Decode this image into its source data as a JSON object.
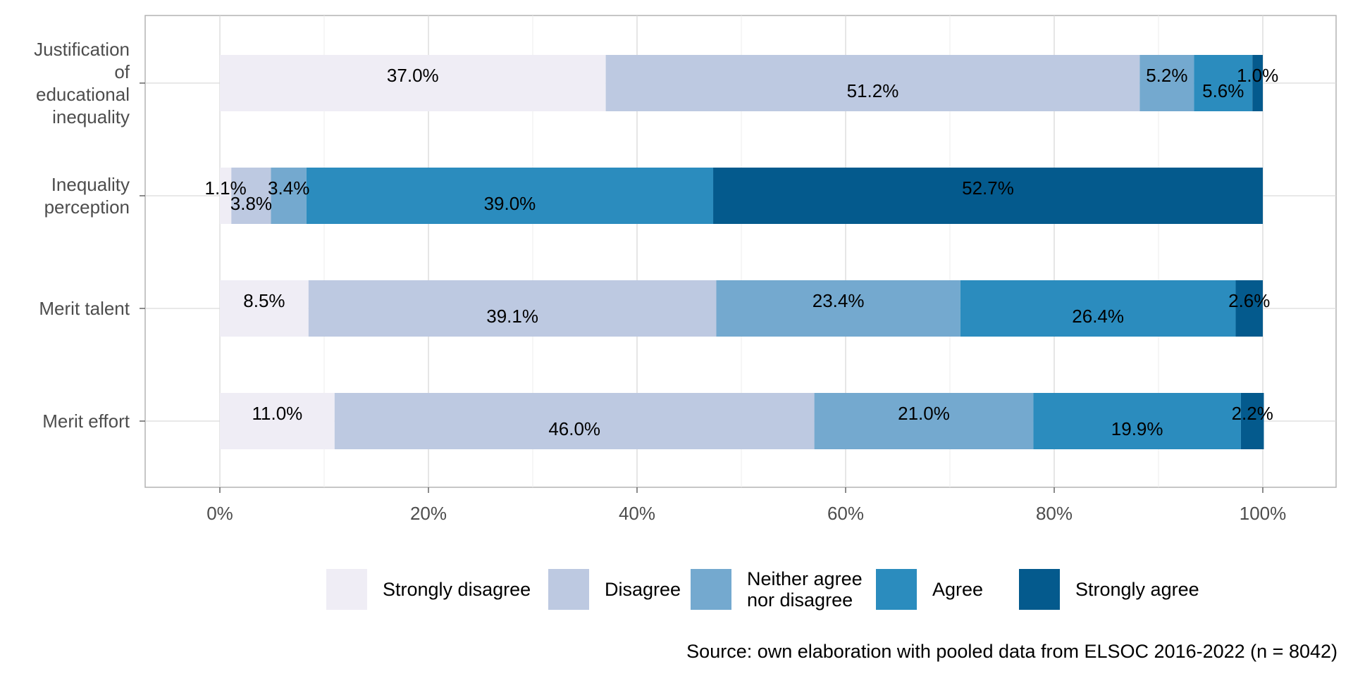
{
  "chart_data": {
    "type": "bar",
    "orientation": "horizontal",
    "stacked": true,
    "categories": [
      "Justification of educational inequality",
      "Inequality perception",
      "Merit talent",
      "Merit effort"
    ],
    "category_lines": [
      [
        "Justification",
        "of",
        "educational",
        "inequality"
      ],
      [
        "Inequality",
        "perception"
      ],
      [
        "Merit talent"
      ],
      [
        "Merit effort"
      ]
    ],
    "series": [
      {
        "name": "Strongly disagree",
        "color": "#efedf5",
        "values": [
          37.0,
          1.1,
          8.5,
          11.0
        ],
        "labels": [
          "37.0%",
          "1.1%",
          "8.5%",
          "11.0%"
        ]
      },
      {
        "name": "Disagree",
        "color": "#bdc9e1",
        "values": [
          51.2,
          3.8,
          39.1,
          46.0
        ],
        "labels": [
          "51.2%",
          "3.8%",
          "39.1%",
          "46.0%"
        ]
      },
      {
        "name": "Neither agree nor disagree",
        "legend_lines": [
          "Neither agree",
          "nor disagree"
        ],
        "color": "#74a9cf",
        "values": [
          5.2,
          3.4,
          23.4,
          21.0
        ],
        "labels": [
          "5.2%",
          "3.4%",
          "23.4%",
          "21.0%"
        ]
      },
      {
        "name": "Agree",
        "color": "#2b8cbe",
        "values": [
          5.6,
          39.0,
          26.4,
          19.9
        ],
        "labels": [
          "5.6%",
          "39.0%",
          "26.4%",
          "19.9%"
        ]
      },
      {
        "name": "Strongly agree",
        "color": "#045a8d",
        "values": [
          1.0,
          52.7,
          2.6,
          2.2
        ],
        "labels": [
          "1.0%",
          "52.7%",
          "2.6%",
          "2.2%"
        ]
      }
    ],
    "x_ticks": [
      "0%",
      "20%",
      "40%",
      "60%",
      "80%",
      "100%"
    ],
    "xlim": [
      0,
      100
    ],
    "xlabel": "",
    "ylabel": "",
    "grid": true,
    "legend_position": "bottom",
    "caption": "Source: own elaboration with pooled data from ELSOC 2016-2022 (n = 8042)"
  }
}
